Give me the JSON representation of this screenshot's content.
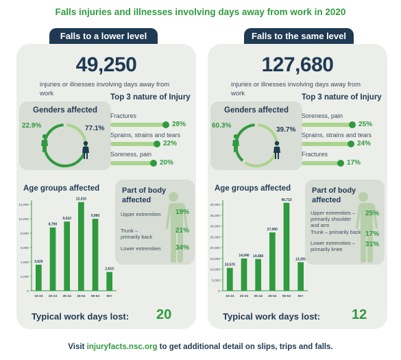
{
  "title": "Falls injuries and illnesses involving days away from work in 2020",
  "footer": {
    "prefix": "Visit ",
    "link": "injuryfacts.nsc.org",
    "suffix": " to get additional detail on slips, trips and falls."
  },
  "labels": {
    "injuries_text": "injuries or illnesses involving days away from work",
    "genders_title": "Genders affected",
    "nature_title": "Top 3 nature of Injury",
    "age_title": "Age groups affected",
    "body_title": "Part of body affected",
    "days_label": "Typical work days lost:"
  },
  "colors": {
    "green": "#2f9a3e",
    "light_green": "#a9d48b",
    "navy": "#1f3a52",
    "panel": "#eceeea"
  },
  "chart_data": [
    {
      "type": "bar",
      "panel": "Falls to a lower level",
      "total": "49,250",
      "gender": {
        "female": "22.9%",
        "male": "77.1%",
        "female_value": 22.9,
        "male_value": 77.1
      },
      "nature": [
        {
          "label": "Fractures",
          "pct": "28%",
          "value": 28
        },
        {
          "label": "Sprains, strains and tears",
          "pct": "22%",
          "value": 22
        },
        {
          "label": "Soreness, pain",
          "pct": "20%",
          "value": 20
        }
      ],
      "categories": [
        "16-24",
        "25-34",
        "35-44",
        "45-54",
        "55-64",
        "65+"
      ],
      "values": [
        3620,
        8790,
        9610,
        12310,
        9990,
        2610
      ],
      "value_labels": [
        "3,620",
        "8,790",
        "9,610",
        "12,310",
        "9,990",
        "2,610"
      ],
      "ylim": [
        0,
        12000
      ],
      "yticks": [
        0,
        2000,
        4000,
        6000,
        8000,
        10000,
        12000
      ],
      "ytick_labels": [
        "0",
        "2,000",
        "4,000",
        "6,000",
        "8,000",
        "10,000",
        "12,000"
      ],
      "body": [
        {
          "label": "Upper extremities",
          "pct": "19%"
        },
        {
          "label": "Trunk – primarily back",
          "pct": "21%"
        },
        {
          "label": "Lower extremities",
          "pct": "34%"
        }
      ],
      "days_lost": "20"
    },
    {
      "type": "bar",
      "panel": "Falls to the same level",
      "total": "127,680",
      "gender": {
        "female": "60.3%",
        "male": "39.7%",
        "female_value": 60.3,
        "male_value": 39.7
      },
      "nature": [
        {
          "label": "Soreness, pain",
          "pct": "25%",
          "value": 25
        },
        {
          "label": "Sprains, strains and tears",
          "pct": "24%",
          "value": 24
        },
        {
          "label": "Fractures",
          "pct": "17%",
          "value": 17
        }
      ],
      "categories": [
        "16-24",
        "25-34",
        "35-44",
        "45-54",
        "55-64",
        "65+"
      ],
      "values": [
        10570,
        14940,
        14680,
        27000,
        40710,
        13200
      ],
      "value_labels": [
        "10,570",
        "14,940",
        "14,680",
        "27,000",
        "40,710",
        "13,200"
      ],
      "ylim": [
        0,
        40000
      ],
      "yticks": [
        0,
        5000,
        10000,
        15000,
        20000,
        25000,
        30000,
        35000,
        40000
      ],
      "ytick_labels": [
        "0",
        "5,000",
        "10,000",
        "15,000",
        "20,000",
        "25,000",
        "30,000",
        "35,000",
        "40,000"
      ],
      "body": [
        {
          "label": "Upper extremities – primarily shoulder and arm",
          "pct": "25%"
        },
        {
          "label": "Trunk – primarily back",
          "pct": "17%"
        },
        {
          "label": "Lower extremities – primarily knee",
          "pct": "31%"
        }
      ],
      "days_lost": "12"
    }
  ]
}
